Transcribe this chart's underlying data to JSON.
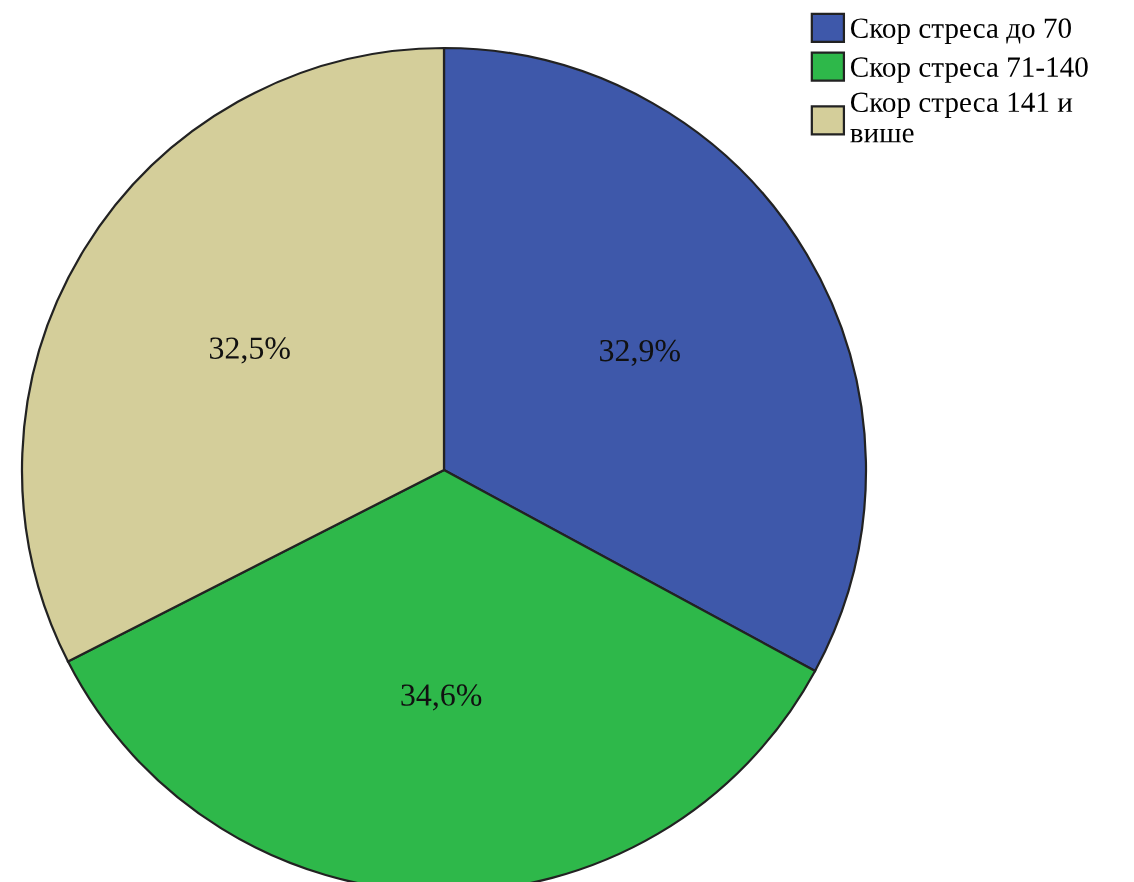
{
  "chart_data": {
    "type": "pie",
    "categories": [
      "Скор стреса до 70",
      "Скор стреса 71-140",
      "Скор стреса 141 и више"
    ],
    "values": [
      32.9,
      34.6,
      32.5
    ],
    "colors": [
      "#3e58aa",
      "#2eb84a",
      "#d4ce9a"
    ],
    "value_labels": [
      "32,9%",
      "34,6%",
      "32,5%"
    ],
    "legend": "top right"
  }
}
